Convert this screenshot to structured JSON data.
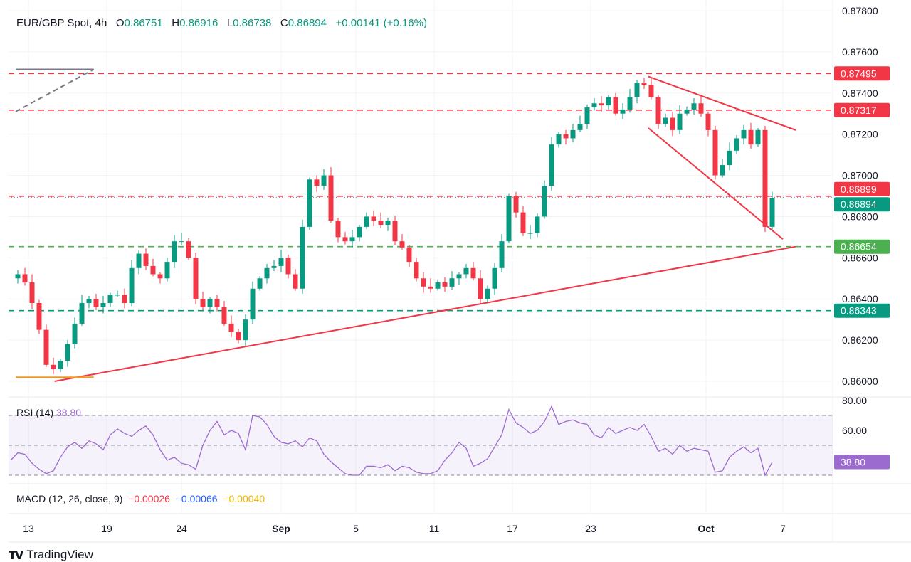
{
  "header": {
    "symbol": "EUR/GBP Spot, 4h",
    "open_label": "O",
    "open": "0.86751",
    "high_label": "H",
    "high": "0.86916",
    "low_label": "L",
    "low": "0.86738",
    "close_label": "C",
    "close": "0.86894",
    "change": "+0.00141 (+0.16%)"
  },
  "rsi": {
    "label": "RSI (14)",
    "value": "38.80"
  },
  "macd": {
    "label": "MACD (12, 26, close, 9)",
    "macd": "−0.00026",
    "signal": "−0.00066",
    "hist": "−0.00040"
  },
  "branding": {
    "name": "TradingView"
  },
  "colors": {
    "up": "#089981",
    "down": "#f23645",
    "support": "#4caf50",
    "rsi": "#9c6bd0",
    "macd_line": "#2962ff",
    "macd_signal": "#ff9800"
  },
  "chart_data": [
    {
      "type": "candlestick",
      "title": "EUR/GBP Spot, 4h",
      "period": [
        "Aug 12",
        "Oct 4"
      ],
      "ylim": [
        0.8592,
        0.8782
      ],
      "yticks": [
        "0.87800",
        "0.87600",
        "0.87400",
        "0.87200",
        "0.87000",
        "0.86800",
        "0.86600",
        "0.86400",
        "0.86200",
        "0.86000"
      ],
      "xticks": [
        {
          "label": "13",
          "date": "Aug 13",
          "bold": false
        },
        {
          "label": "19",
          "date": "Aug 19",
          "bold": false
        },
        {
          "label": "24",
          "date": "Aug 24",
          "bold": false
        },
        {
          "label": "Sep",
          "date": "Sep 1",
          "bold": true
        },
        {
          "label": "5",
          "date": "Sep 5",
          "bold": false
        },
        {
          "label": "11",
          "date": "Sep 11",
          "bold": false
        },
        {
          "label": "17",
          "date": "Sep 17",
          "bold": false
        },
        {
          "label": "23",
          "date": "Sep 23",
          "bold": false
        },
        {
          "label": "Oct",
          "date": "Oct 1",
          "bold": true
        },
        {
          "label": "7",
          "date": "Oct 7",
          "bold": false
        }
      ],
      "closes": [
        0.865,
        0.8652,
        0.8648,
        0.8638,
        0.8625,
        0.8608,
        0.8606,
        0.861,
        0.8618,
        0.8628,
        0.8638,
        0.864,
        0.8636,
        0.8638,
        0.8642,
        0.8642,
        0.8638,
        0.8655,
        0.8662,
        0.8656,
        0.8652,
        0.865,
        0.8658,
        0.8668,
        0.8668,
        0.866,
        0.864,
        0.8636,
        0.864,
        0.8636,
        0.8628,
        0.8624,
        0.862,
        0.863,
        0.8645,
        0.865,
        0.8655,
        0.8656,
        0.866,
        0.8652,
        0.8645,
        0.8675,
        0.8698,
        0.8695,
        0.87,
        0.8678,
        0.867,
        0.8668,
        0.867,
        0.8675,
        0.868,
        0.8678,
        0.8676,
        0.8678,
        0.8668,
        0.8665,
        0.8658,
        0.865,
        0.8646,
        0.8645,
        0.8648,
        0.8646,
        0.865,
        0.8652,
        0.8655,
        0.865,
        0.864,
        0.8645,
        0.8655,
        0.8668,
        0.869,
        0.8682,
        0.8672,
        0.8672,
        0.868,
        0.8695,
        0.8715,
        0.872,
        0.8718,
        0.8722,
        0.8725,
        0.8733,
        0.8735,
        0.8734,
        0.8738,
        0.873,
        0.8732,
        0.8738,
        0.8745,
        0.8744,
        0.8738,
        0.8725,
        0.8728,
        0.8722,
        0.873,
        0.8732,
        0.8735,
        0.873,
        0.8722,
        0.87,
        0.8705,
        0.8712,
        0.8718,
        0.8722,
        0.8715,
        0.8722,
        0.8675,
        0.8689
      ],
      "levels": [
        {
          "price": 0.87495,
          "label": "0.87495",
          "color": "#f23645",
          "style": "dashed"
        },
        {
          "price": 0.87317,
          "label": "0.87317",
          "color": "#f23645",
          "style": "dashed"
        },
        {
          "price": 0.86899,
          "label": "0.86899",
          "color": "#f23645",
          "style": "dashed"
        },
        {
          "price": 0.86894,
          "label": "0.86894",
          "color": "#089981",
          "style": "dotted"
        },
        {
          "price": 0.86654,
          "label": "0.86654",
          "color": "#4caf50",
          "style": "dashed"
        },
        {
          "price": 0.86343,
          "label": "0.86343",
          "color": "#089981",
          "style": "dashed"
        }
      ],
      "trendlines": [
        {
          "name": "rising-support",
          "color": "#f23645",
          "style": "solid",
          "from": {
            "date": "Aug 15",
            "price": 0.86
          },
          "to": {
            "date": "Oct 8",
            "price": 0.86654
          }
        },
        {
          "name": "wedge-upper",
          "color": "#f23645",
          "style": "solid",
          "from": {
            "date": "Sep 27",
            "price": 0.8748
          },
          "to": {
            "date": "Oct 8",
            "price": 0.8722
          }
        },
        {
          "name": "wedge-lower",
          "color": "#f23645",
          "style": "solid",
          "from": {
            "date": "Sep 27",
            "price": 0.8723
          },
          "to": {
            "date": "Oct 7",
            "price": 0.8669
          }
        },
        {
          "name": "gray-horizontal",
          "color": "#787b86",
          "style": "solid",
          "from": {
            "date": "Aug 12",
            "price": 0.87515
          },
          "to": {
            "date": "Aug 18",
            "price": 0.87515
          }
        },
        {
          "name": "gray-diagonal",
          "color": "#787b86",
          "style": "dashed",
          "from": {
            "date": "Aug 12",
            "price": 0.8731
          },
          "to": {
            "date": "Aug 18",
            "price": 0.87515
          }
        },
        {
          "name": "orange-low",
          "color": "#ff9800",
          "style": "solid",
          "from": {
            "date": "Aug 12",
            "price": 0.8602
          },
          "to": {
            "date": "Aug 18",
            "price": 0.8602
          }
        }
      ]
    },
    {
      "type": "line",
      "title": "RSI (14)",
      "ylim": [
        25,
        82
      ],
      "yticks": [
        "80.00",
        "60.00"
      ],
      "bands": [
        30,
        50,
        70
      ],
      "current": "38.80",
      "values": [
        40,
        45,
        44,
        38,
        34,
        31,
        33,
        42,
        49,
        52,
        48,
        53,
        51,
        47,
        57,
        61,
        58,
        56,
        60,
        63,
        57,
        47,
        40,
        42,
        38,
        37,
        34,
        50,
        60,
        66,
        57,
        60,
        58,
        47,
        70,
        69,
        64,
        56,
        52,
        51,
        53,
        49,
        55,
        53,
        44,
        39,
        35,
        31,
        30,
        30,
        36,
        36,
        35,
        37,
        33,
        36,
        35,
        32,
        31,
        31,
        33,
        40,
        45,
        52,
        48,
        36,
        38,
        41,
        49,
        57,
        74,
        65,
        62,
        58,
        60,
        66,
        76,
        64,
        66,
        67,
        65,
        64,
        57,
        55,
        62,
        58,
        60,
        62,
        60,
        64,
        56,
        46,
        48,
        44,
        50,
        46,
        48,
        47,
        46,
        32,
        33,
        42,
        46,
        49,
        45,
        48,
        30,
        38.8
      ]
    }
  ]
}
